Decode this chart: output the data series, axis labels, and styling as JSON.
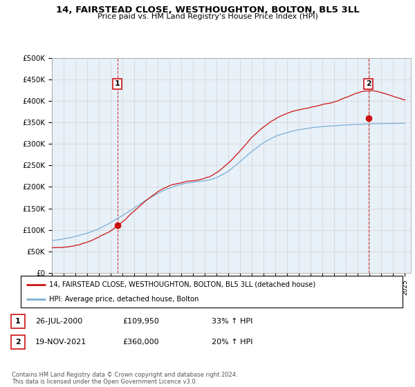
{
  "title": "14, FAIRSTEAD CLOSE, WESTHOUGHTON, BOLTON, BL5 3LL",
  "subtitle": "Price paid vs. HM Land Registry's House Price Index (HPI)",
  "ylim": [
    0,
    500000
  ],
  "yticks": [
    0,
    50000,
    100000,
    150000,
    200000,
    250000,
    300000,
    350000,
    400000,
    450000,
    500000
  ],
  "ytick_labels": [
    "£0",
    "£50K",
    "£100K",
    "£150K",
    "£200K",
    "£250K",
    "£300K",
    "£350K",
    "£400K",
    "£450K",
    "£500K"
  ],
  "hpi_color": "#7bafd4",
  "price_color": "#cc1111",
  "chart_bg": "#e8f0f8",
  "sale1_year": 2000.57,
  "sale1_price": 109950,
  "sale2_year": 2021.89,
  "sale2_price": 360000,
  "legend_line1": "14, FAIRSTEAD CLOSE, WESTHOUGHTON, BOLTON, BL5 3LL (detached house)",
  "legend_line2": "HPI: Average price, detached house, Bolton",
  "table_row1": [
    "1",
    "26-JUL-2000",
    "£109,950",
    "33% ↑ HPI"
  ],
  "table_row2": [
    "2",
    "19-NOV-2021",
    "£360,000",
    "20% ↑ HPI"
  ],
  "footer": "Contains HM Land Registry data © Crown copyright and database right 2024.\nThis data is licensed under the Open Government Licence v3.0.",
  "background_color": "#ffffff",
  "grid_color": "#cccccc"
}
